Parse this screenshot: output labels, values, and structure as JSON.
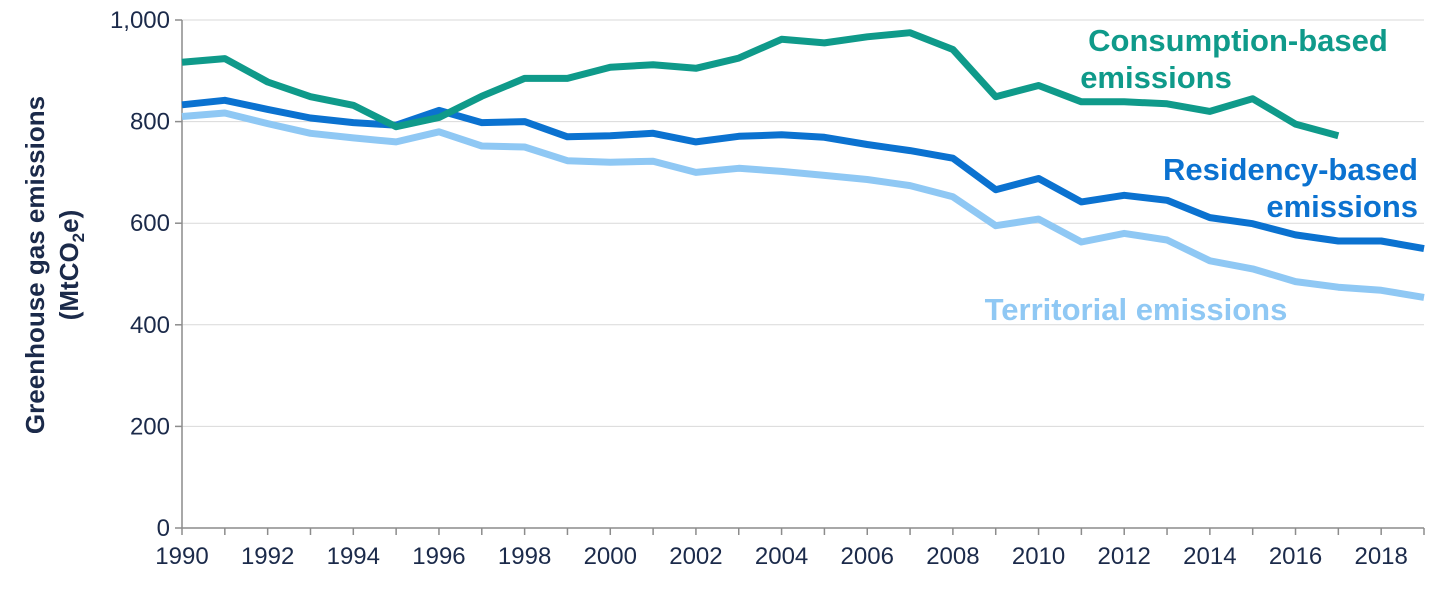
{
  "chart_data": {
    "type": "line",
    "ylabel_line1": "Greenhouse gas emissions",
    "ylabel_line2_prefix": "(MtCO",
    "ylabel_line2_sub": "2",
    "ylabel_line2_suffix": "e)",
    "ylim": [
      0,
      1000
    ],
    "y_ticks": [
      0,
      200,
      400,
      600,
      800,
      1000
    ],
    "y_tick_labels": [
      "0",
      "200",
      "400",
      "600",
      "800",
      "1,000"
    ],
    "x_range": [
      1990,
      2019
    ],
    "x_tick_labels": [
      "1990",
      "1992",
      "1994",
      "1996",
      "1998",
      "2000",
      "2002",
      "2004",
      "2006",
      "2008",
      "2010",
      "2012",
      "2014",
      "2016",
      "2018"
    ],
    "grid": "horizontal",
    "series": [
      {
        "name": "Territorial emissions",
        "color": "#8fc8f4",
        "label_line1": "Territorial emissions",
        "x": [
          1990,
          1991,
          1992,
          1993,
          1994,
          1995,
          1996,
          1997,
          1998,
          1999,
          2000,
          2001,
          2002,
          2003,
          2004,
          2005,
          2006,
          2007,
          2008,
          2009,
          2010,
          2011,
          2012,
          2013,
          2014,
          2015,
          2016,
          2017,
          2018,
          2019
        ],
        "values": [
          810,
          817,
          796,
          777,
          768,
          760,
          780,
          752,
          750,
          723,
          720,
          722,
          700,
          708,
          702,
          694,
          686,
          674,
          652,
          595,
          608,
          563,
          580,
          567,
          526,
          510,
          485,
          474,
          468,
          454
        ]
      },
      {
        "name": "Residency-based emissions",
        "color": "#0b72d0",
        "label_line1": "Residency-based",
        "label_line2": "emissions",
        "x": [
          1990,
          1991,
          1992,
          1993,
          1994,
          1995,
          1996,
          1997,
          1998,
          1999,
          2000,
          2001,
          2002,
          2003,
          2004,
          2005,
          2006,
          2007,
          2008,
          2009,
          2010,
          2011,
          2012,
          2013,
          2014,
          2015,
          2016,
          2017,
          2018,
          2019
        ],
        "values": [
          833,
          842,
          824,
          807,
          798,
          793,
          822,
          798,
          800,
          770,
          772,
          777,
          760,
          771,
          774,
          769,
          755,
          743,
          728,
          666,
          688,
          642,
          655,
          645,
          611,
          599,
          577,
          565,
          565,
          550
        ]
      },
      {
        "name": "Consumption-based emissions",
        "color": "#0f9a8a",
        "label_line1": "Consumption-based",
        "label_line2": "emissions",
        "x": [
          1990,
          1991,
          1992,
          1993,
          1994,
          1995,
          1996,
          1997,
          1998,
          1999,
          2000,
          2001,
          2002,
          2003,
          2004,
          2005,
          2006,
          2007,
          2008,
          2009,
          2010,
          2011,
          2012,
          2013,
          2014,
          2015,
          2016,
          2017
        ],
        "values": [
          917,
          924,
          878,
          849,
          832,
          790,
          808,
          850,
          885,
          885,
          907,
          912,
          905,
          925,
          962,
          955,
          967,
          975,
          942,
          849,
          871,
          839,
          839,
          835,
          820,
          845,
          795,
          772
        ]
      }
    ]
  }
}
